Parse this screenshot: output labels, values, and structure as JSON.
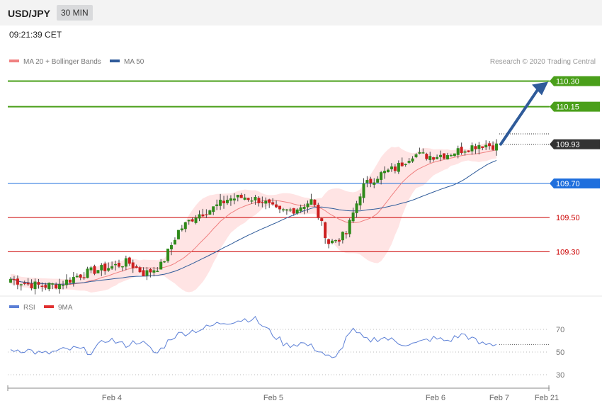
{
  "header": {
    "symbol": "USD/JPY",
    "timeframe": "30 MIN",
    "timestamp": "09:21:39 CET"
  },
  "legend": {
    "items": [
      {
        "label": "MA 20 + Bollinger Bands",
        "color": "#f08080"
      },
      {
        "label": "MA 50",
        "color": "#2f5b9a"
      }
    ],
    "credit": "Research © 2020 Trading Central"
  },
  "rsi_legend": {
    "items": [
      {
        "label": "RSI",
        "color": "#5b7fd6"
      },
      {
        "label": "9MA",
        "color": "#e03030"
      }
    ]
  },
  "chart_data": [
    {
      "type": "candlestick",
      "y_range": [
        109.04,
        110.36
      ],
      "x_tick_labels": [
        "Feb 4",
        "Feb 5",
        "Feb 6",
        "Feb 7",
        "Feb 21"
      ],
      "levels": [
        {
          "label": "110.30",
          "value": 110.3,
          "kind": "resistance",
          "color": "#4a9f1a"
        },
        {
          "label": "110.15",
          "value": 110.15,
          "kind": "resistance",
          "color": "#4a9f1a"
        },
        {
          "label": "109.93",
          "value": 109.93,
          "kind": "last_price",
          "color": "#333333"
        },
        {
          "label": "109.70",
          "value": 109.7,
          "kind": "pivot",
          "color": "#1f6fdd"
        },
        {
          "label": "109.50",
          "value": 109.5,
          "kind": "support",
          "color": "#cc0000"
        },
        {
          "label": "109.30",
          "value": 109.3,
          "kind": "support",
          "color": "#cc0000"
        }
      ],
      "projection": {
        "from": 109.93,
        "to": 110.3,
        "direction": "up"
      },
      "price_keypoints": [
        109.14,
        109.11,
        109.1,
        109.11,
        109.16,
        109.19,
        109.21,
        109.24,
        109.17,
        109.22,
        109.42,
        109.51,
        109.55,
        109.61,
        109.62,
        109.6,
        109.53,
        109.55,
        109.6,
        109.35,
        109.4,
        109.68,
        109.75,
        109.79,
        109.87,
        109.86,
        109.87,
        109.9,
        109.93,
        109.92
      ]
    },
    {
      "type": "line",
      "name": "RSI",
      "y_ticks": [
        30,
        50,
        70
      ],
      "rsi_keypoints": [
        52,
        52,
        48,
        51,
        53,
        50,
        62,
        56,
        60,
        48,
        64,
        68,
        71,
        76,
        78,
        80,
        68,
        56,
        58,
        52,
        42,
        70,
        60,
        63,
        58,
        57,
        62,
        60,
        66,
        57,
        57
      ]
    }
  ]
}
